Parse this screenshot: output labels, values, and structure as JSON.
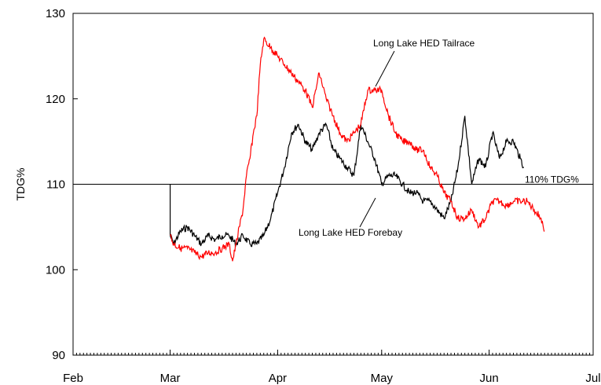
{
  "chart_data": {
    "type": "line",
    "title": "",
    "xlabel": "",
    "ylabel": "TDG%",
    "ylim": [
      90,
      130
    ],
    "yticks": [
      90,
      100,
      110,
      120,
      130
    ],
    "xlim": [
      "Feb 1",
      "Jul 1"
    ],
    "xticks": [
      {
        "date": "Feb 1",
        "label": "Feb"
      },
      {
        "date": "Mar 1",
        "label": "Mar"
      },
      {
        "date": "Apr 1",
        "label": "Apr"
      },
      {
        "date": "May 1",
        "label": "May"
      },
      {
        "date": "Jun 1",
        "label": "Jun"
      },
      {
        "date": "Jul 1",
        "label": "Jul"
      }
    ],
    "grid": false,
    "reference_line": {
      "y": 110,
      "label": "110% TDG%"
    },
    "annotations": [
      {
        "text": "Long Lake HED Tailrace",
        "series": "tailrace"
      },
      {
        "text": "Long Lake HED Forebay",
        "series": "forebay"
      }
    ],
    "series": [
      {
        "name": "Long Lake HED Forebay",
        "color": "#000000",
        "x": [
          "Mar 1",
          "Mar 1",
          "Mar 2",
          "Mar 4",
          "Mar 6",
          "Mar 8",
          "Mar 10",
          "Mar 12",
          "Mar 14",
          "Mar 16",
          "Mar 18",
          "Mar 20",
          "Mar 22",
          "Mar 24",
          "Mar 26",
          "Mar 28",
          "Mar 30",
          "Apr 1",
          "Apr 3",
          "Apr 5",
          "Apr 7",
          "Apr 9",
          "Apr 11",
          "Apr 13",
          "Apr 15",
          "Apr 17",
          "Apr 19",
          "Apr 21",
          "Apr 23",
          "Apr 25",
          "Apr 27",
          "Apr 29",
          "May 1",
          "May 3",
          "May 5",
          "May 7",
          "May 9",
          "May 11",
          "May 13",
          "May 15",
          "May 17",
          "May 19",
          "May 21",
          "May 23",
          "May 25",
          "May 27",
          "May 29",
          "May 31",
          "Jun 2",
          "Jun 4",
          "Jun 6",
          "Jun 8",
          "Jun 10",
          "Jun 11"
        ],
        "values": [
          110,
          104,
          103,
          104.5,
          105,
          104,
          103,
          104,
          103.5,
          104,
          104,
          103,
          104,
          103,
          103,
          104,
          106,
          109,
          112,
          116,
          117,
          115,
          114,
          116,
          117,
          114,
          113,
          112,
          111,
          117,
          115,
          113,
          110,
          111,
          111,
          110,
          109,
          109,
          108,
          108,
          107,
          106,
          108,
          112,
          118,
          110,
          113,
          112,
          116,
          113,
          115,
          115,
          113,
          112
        ]
      },
      {
        "name": "Long Lake HED Tailrace",
        "color": "#ff0000",
        "x": [
          "Mar 1",
          "Mar 2",
          "Mar 4",
          "Mar 6",
          "Mar 8",
          "Mar 10",
          "Mar 12",
          "Mar 14",
          "Mar 16",
          "Mar 18",
          "Mar 19",
          "Mar 20",
          "Mar 22",
          "Mar 23",
          "Mar 24",
          "Mar 25",
          "Mar 26",
          "Mar 27",
          "Mar 28",
          "Mar 30",
          "Apr 1",
          "Apr 3",
          "Apr 5",
          "Apr 7",
          "Apr 9",
          "Apr 11",
          "Apr 13",
          "Apr 15",
          "Apr 17",
          "Apr 19",
          "Apr 21",
          "Apr 23",
          "Apr 25",
          "Apr 27",
          "Apr 29",
          "May 1",
          "May 3",
          "May 5",
          "May 7",
          "May 9",
          "May 11",
          "May 13",
          "May 15",
          "May 17",
          "May 19",
          "May 21",
          "May 23",
          "May 25",
          "May 27",
          "May 29",
          "May 31",
          "Jun 2",
          "Jun 4",
          "Jun 6",
          "Jun 8",
          "Jun 10",
          "Jun 12",
          "Jun 14",
          "Jun 16",
          "Jun 17"
        ],
        "values": [
          104,
          103,
          102.5,
          102.5,
          102,
          101.5,
          102,
          102,
          102.5,
          103,
          101,
          103,
          107,
          111,
          113,
          116,
          118,
          124,
          127,
          126,
          125,
          124,
          123,
          122,
          121,
          119,
          123,
          120,
          118,
          116,
          115,
          116,
          117,
          121,
          121,
          121,
          118,
          116,
          115,
          115,
          114,
          114,
          112,
          111,
          109,
          108,
          106,
          106,
          107,
          105,
          106,
          108,
          108,
          107.5,
          108,
          108,
          108,
          107,
          106,
          104.5
        ]
      }
    ]
  }
}
